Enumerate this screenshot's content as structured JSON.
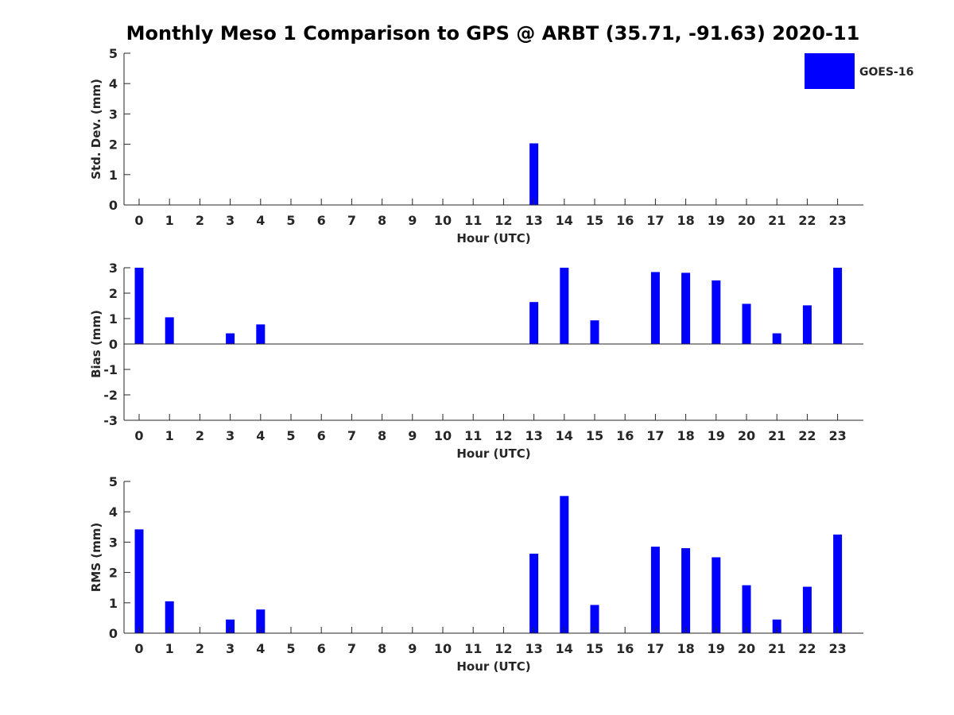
{
  "title": "Monthly Meso 1 Comparison to GPS @ ARBT (35.71, -91.63) 2020-11",
  "colors": {
    "bar": "#0000ff",
    "axis": "#262626",
    "background": "#ffffff"
  },
  "legend": {
    "label": "GOES-16",
    "position": "top-right"
  },
  "chart_data": [
    {
      "type": "bar",
      "name": "std",
      "xlabel": "Hour (UTC)",
      "ylabel": "Std. Dev. (mm)",
      "ylim": [
        0,
        5
      ],
      "yticks": [
        "0",
        "1",
        "2",
        "3",
        "4",
        "5"
      ],
      "categories": [
        "0",
        "1",
        "2",
        "3",
        "4",
        "5",
        "6",
        "7",
        "8",
        "9",
        "10",
        "11",
        "12",
        "13",
        "14",
        "15",
        "16",
        "17",
        "18",
        "19",
        "20",
        "21",
        "22",
        "23"
      ],
      "series": [
        {
          "name": "GOES-16",
          "values": [
            0,
            0,
            0,
            0,
            0,
            0,
            0,
            0,
            0,
            0,
            0,
            0,
            0,
            2.03,
            0,
            0,
            0,
            0,
            0,
            0,
            0,
            0,
            0,
            0
          ]
        }
      ],
      "grid": false
    },
    {
      "type": "bar",
      "name": "bias",
      "xlabel": "Hour (UTC)",
      "ylabel": "Bias (mm)",
      "ylim": [
        -3,
        3
      ],
      "yticks": [
        "-3",
        "-2",
        "-1",
        "0",
        "1",
        "2",
        "3"
      ],
      "categories": [
        "0",
        "1",
        "2",
        "3",
        "4",
        "5",
        "6",
        "7",
        "8",
        "9",
        "10",
        "11",
        "12",
        "13",
        "14",
        "15",
        "16",
        "17",
        "18",
        "19",
        "20",
        "21",
        "22",
        "23"
      ],
      "series": [
        {
          "name": "GOES-16",
          "values": [
            3.0,
            1.05,
            0,
            0.42,
            0.77,
            0,
            0,
            0,
            0,
            0,
            0,
            0,
            0,
            1.65,
            3.0,
            0.93,
            0,
            2.83,
            2.8,
            2.5,
            1.58,
            0.42,
            1.52,
            3.0
          ]
        }
      ],
      "grid": false
    },
    {
      "type": "bar",
      "name": "rms",
      "xlabel": "Hour (UTC)",
      "ylabel": "RMS (mm)",
      "ylim": [
        0,
        5
      ],
      "yticks": [
        "0",
        "1",
        "2",
        "3",
        "4",
        "5"
      ],
      "categories": [
        "0",
        "1",
        "2",
        "3",
        "4",
        "5",
        "6",
        "7",
        "8",
        "9",
        "10",
        "11",
        "12",
        "13",
        "14",
        "15",
        "16",
        "17",
        "18",
        "19",
        "20",
        "21",
        "22",
        "23"
      ],
      "series": [
        {
          "name": "GOES-16",
          "values": [
            3.42,
            1.05,
            0,
            0.45,
            0.78,
            0,
            0,
            0,
            0,
            0,
            0,
            0,
            0,
            2.62,
            4.52,
            0.93,
            0,
            2.85,
            2.8,
            2.5,
            1.58,
            0.45,
            1.53,
            3.25
          ]
        }
      ],
      "grid": false
    }
  ]
}
